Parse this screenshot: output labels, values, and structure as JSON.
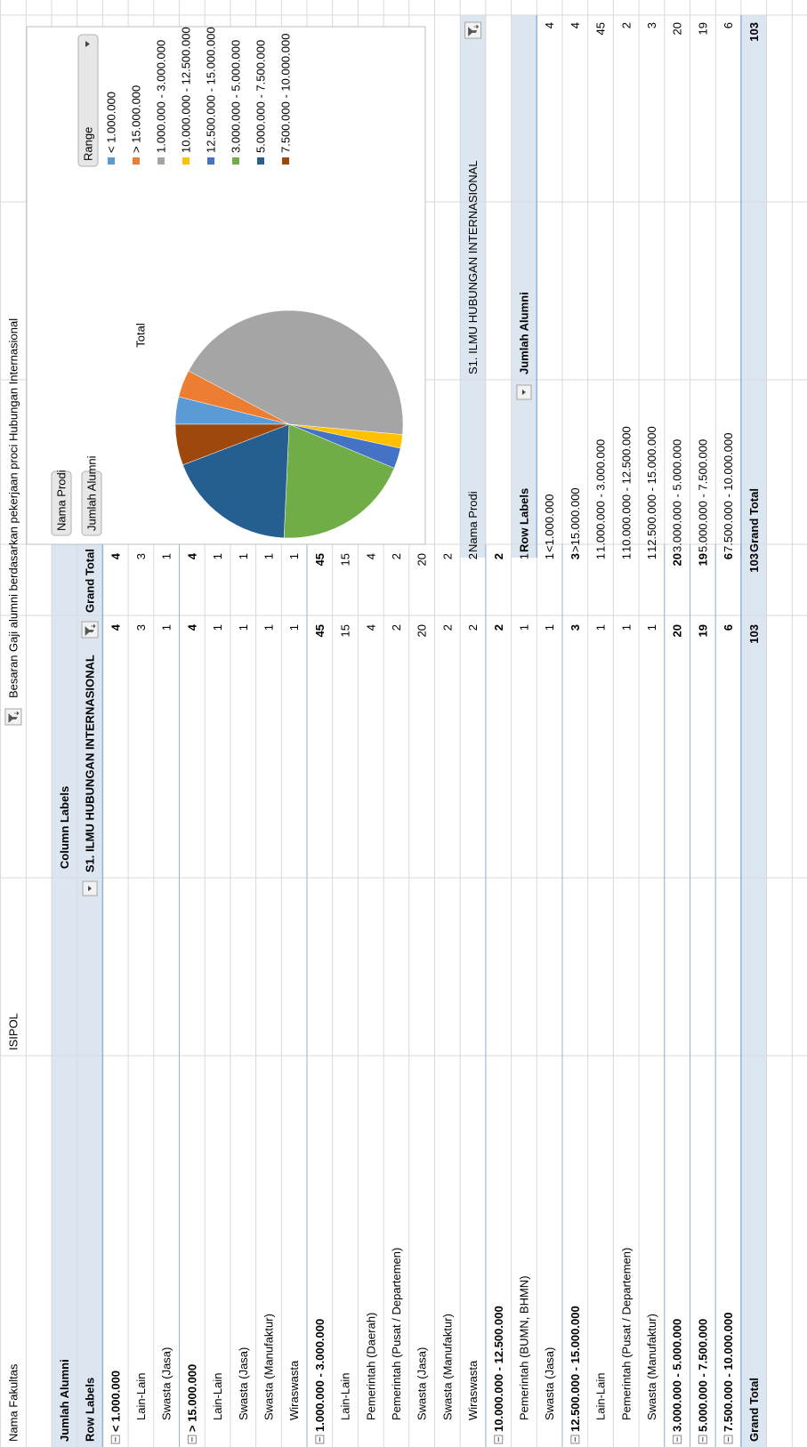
{
  "report_filter": {
    "label": "Nama Fakultas",
    "value": "ISIPOL"
  },
  "sheet_title": "Besaran Gaji alumni berdasarkan pekerjaan proci Hubungan Internasional",
  "pivot1": {
    "value_field": "Jumlah Alumni",
    "column_labels": "Column Labels",
    "row_labels": "Row Labels",
    "column": "S1. ILMU HUBUNGAN INTERNASIONAL",
    "grand_total_header": "Grand Total",
    "rows": [
      {
        "label": "< 1.000.000",
        "group": true,
        "values": [
          4,
          4
        ]
      },
      {
        "label": "Lain-Lain",
        "group": false,
        "values": [
          3,
          3
        ]
      },
      {
        "label": "Swasta (Jasa)",
        "group": false,
        "values": [
          1,
          1
        ]
      },
      {
        "label": "> 15.000.000",
        "group": true,
        "values": [
          4,
          4
        ]
      },
      {
        "label": "Lain-Lain",
        "group": false,
        "values": [
          1,
          1
        ]
      },
      {
        "label": "Swasta (Jasa)",
        "group": false,
        "values": [
          1,
          1
        ]
      },
      {
        "label": "Swasta (Manufaktur)",
        "group": false,
        "values": [
          1,
          1
        ]
      },
      {
        "label": "Wiraswasta",
        "group": false,
        "values": [
          1,
          1
        ]
      },
      {
        "label": "1.000.000 - 3.000.000",
        "group": true,
        "values": [
          45,
          45
        ]
      },
      {
        "label": "Lain-Lain",
        "group": false,
        "values": [
          15,
          15
        ]
      },
      {
        "label": "Pemerintah (Daerah)",
        "group": false,
        "values": [
          4,
          4
        ]
      },
      {
        "label": "Pemerintah (Pusat / Departemen)",
        "group": false,
        "values": [
          2,
          2
        ]
      },
      {
        "label": "Swasta (Jasa)",
        "group": false,
        "values": [
          20,
          20
        ]
      },
      {
        "label": "Swasta (Manufaktur)",
        "group": false,
        "values": [
          2,
          2
        ]
      },
      {
        "label": "Wiraswasta",
        "group": false,
        "values": [
          2,
          2
        ]
      },
      {
        "label": "10.000.000 - 12.500.000",
        "group": true,
        "values": [
          2,
          2
        ]
      },
      {
        "label": "Pemerintah (BUMN, BHMN)",
        "group": false,
        "values": [
          1,
          1
        ]
      },
      {
        "label": "Swasta (Jasa)",
        "group": false,
        "values": [
          1,
          1
        ]
      },
      {
        "label": "12.500.000 - 15.000.000",
        "group": true,
        "values": [
          3,
          3
        ]
      },
      {
        "label": "Lain-Lain",
        "group": false,
        "values": [
          1,
          1
        ]
      },
      {
        "label": "Pemerintah (Pusat / Departemen)",
        "group": false,
        "values": [
          1,
          1
        ]
      },
      {
        "label": "Swasta (Manufaktur)",
        "group": false,
        "values": [
          1,
          1
        ]
      },
      {
        "label": "3.000.000 - 5.000.000",
        "group": true,
        "values": [
          20,
          20
        ]
      },
      {
        "label": "5.000.000 - 7.500.000",
        "group": true,
        "values": [
          19,
          19
        ]
      },
      {
        "label": "7.500.000 - 10.000.000",
        "group": true,
        "values": [
          6,
          6
        ]
      }
    ],
    "grand_total": {
      "label": "Grand Total",
      "values": [
        103,
        103
      ]
    }
  },
  "chart_data": {
    "type": "pie",
    "title": "Total",
    "field_buttons": [
      "Nama Prodi",
      "Jumlah Alumni"
    ],
    "legend_title": "Range",
    "categories": [
      "< 1.000.000",
      "> 15.000.000",
      "1.000.000 - 3.000.000",
      "10.000.000 - 12.500.000",
      "12.500.000 - 15.000.000",
      "3.000.000 - 5.000.000",
      "5.000.000 - 7.500.000",
      "7.500.000 - 10.000.000"
    ],
    "values": [
      4,
      4,
      45,
      2,
      3,
      20,
      19,
      6
    ],
    "colors": [
      "#5b9bd5",
      "#ed7d31",
      "#a5a5a5",
      "#ffc000",
      "#4472c4",
      "#70ad47",
      "#255e91",
      "#9e480e"
    ]
  },
  "pivot2": {
    "filter_label": "Nama Prodi",
    "filter_value": "S1. ILMU HUBUNGAN INTERNASIONAL",
    "row_labels": "Row Labels",
    "value_field": "Jumlah Alumni",
    "rows": [
      {
        "label": "<1.000.000",
        "value": 4
      },
      {
        "label": ">15.000.000",
        "value": 4
      },
      {
        "label": "1.000.000 - 3.000.000",
        "value": 45
      },
      {
        "label": "10.000.000 - 12.500.000",
        "value": 2
      },
      {
        "label": "12.500.000 - 15.000.000",
        "value": 3
      },
      {
        "label": "3.000.000 - 5.000.000",
        "value": 20
      },
      {
        "label": "5.000.000 - 7.500.000",
        "value": 19
      },
      {
        "label": "7.500.000 - 10.000.000",
        "value": 6
      }
    ],
    "grand_total": {
      "label": "Grand Total",
      "value": 103
    }
  }
}
